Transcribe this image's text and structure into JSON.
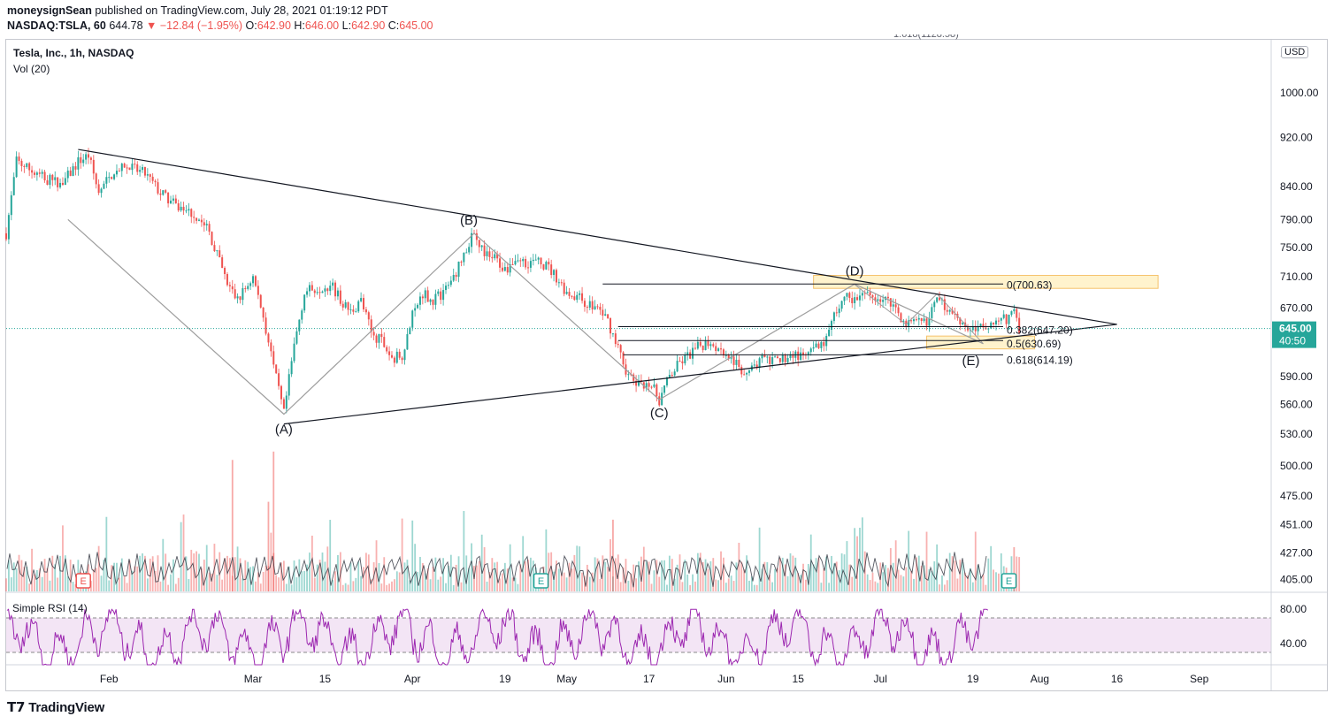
{
  "header": {
    "publisher_user": "moneysignSean",
    "published_text": "published on TradingView.com, July 28, 2021 01:19:12 PDT",
    "symbol": "NASDAQ:TSLA, 60",
    "last": "644.78",
    "change": "▼ −12.84 (−1.95%)",
    "o_label": "O:",
    "o_val": "642.90",
    "h_label": "H:",
    "h_val": "646.00",
    "l_label": "L:",
    "l_val": "642.90",
    "c_label": "C:",
    "c_val": "645.00"
  },
  "legend": {
    "title": "Tesla, Inc., 1h, NASDAQ",
    "volume": "Vol (20)",
    "rsi": "Simple RSI (14)"
  },
  "price_axis": {
    "currency": "USD",
    "top_tick": "10",
    "ticks": [
      "1000.00",
      "920.00",
      "840.00",
      "790.00",
      "750.00",
      "710.00",
      "670.00",
      "630.00",
      "590.00",
      "560.00",
      "530.00",
      "500.00",
      "475.00",
      "451.00",
      "427.00",
      "405.00"
    ],
    "current_price": "645.00",
    "countdown": "40:50",
    "rsi_ticks": [
      "80.00",
      "40.00"
    ]
  },
  "time_axis": [
    "Feb",
    "Mar",
    "15",
    "Apr",
    "19",
    "May",
    "17",
    "Jun",
    "15",
    "Jul",
    "19",
    "Aug",
    "16",
    "Sep"
  ],
  "earnings_marker": "E",
  "top_clipped_label": "1.618(1128.58)",
  "wave_labels": [
    "(A)",
    "(B)",
    "(C)",
    "(D)",
    "(E)"
  ],
  "fib_labels": [
    "0(700.63)",
    "0.382(647.20)",
    "0.5(630.69)",
    "0.618(614.19)"
  ],
  "colors": {
    "up": "#26a69a",
    "down": "#ef5350",
    "rsi": "#9c27b0",
    "rsi_band": "#f3e5f5",
    "zone_fill": "#fff3cd",
    "zone_border": "#f5c26b",
    "price_tag": "#26a69a",
    "current_line": "#26a69a"
  },
  "brand": "TradingView",
  "chart_data": {
    "type": "candlestick",
    "title": "Tesla, Inc., 1h, NASDAQ",
    "x_range": [
      "2021-01-12",
      "2021-09-15"
    ],
    "y_scale": "log",
    "ylim": [
      520,
      1080
    ],
    "path": [
      [
        "2021-01-12",
        770
      ],
      [
        "2021-01-14",
        880
      ],
      [
        "2021-01-17",
        865
      ],
      [
        "2021-01-20",
        850
      ],
      [
        "2021-01-23",
        845
      ],
      [
        "2021-01-26",
        880
      ],
      [
        "2021-01-28",
        890
      ],
      [
        "2021-01-30",
        830
      ],
      [
        "2021-02-02",
        865
      ],
      [
        "2021-02-05",
        870
      ],
      [
        "2021-02-08",
        860
      ],
      [
        "2021-02-11",
        830
      ],
      [
        "2021-02-14",
        810
      ],
      [
        "2021-02-17",
        800
      ],
      [
        "2021-02-20",
        780
      ],
      [
        "2021-02-22",
        740
      ],
      [
        "2021-02-24",
        700
      ],
      [
        "2021-02-26",
        680
      ],
      [
        "2021-03-01",
        710
      ],
      [
        "2021-03-03",
        660
      ],
      [
        "2021-03-05",
        600
      ],
      [
        "2021-03-07",
        550
      ],
      [
        "2021-03-09",
        625
      ],
      [
        "2021-03-11",
        690
      ],
      [
        "2021-03-13",
        695
      ],
      [
        "2021-03-16",
        700
      ],
      [
        "2021-03-18",
        680
      ],
      [
        "2021-03-20",
        665
      ],
      [
        "2021-03-22",
        680
      ],
      [
        "2021-03-24",
        640
      ],
      [
        "2021-03-26",
        630
      ],
      [
        "2021-03-28",
        610
      ],
      [
        "2021-03-30",
        615
      ],
      [
        "2021-04-01",
        660
      ],
      [
        "2021-04-03",
        690
      ],
      [
        "2021-04-05",
        680
      ],
      [
        "2021-04-07",
        690
      ],
      [
        "2021-04-09",
        710
      ],
      [
        "2021-04-11",
        740
      ],
      [
        "2021-04-13",
        770
      ],
      [
        "2021-04-15",
        740
      ],
      [
        "2021-04-17",
        735
      ],
      [
        "2021-04-19",
        720
      ],
      [
        "2021-04-21",
        735
      ],
      [
        "2021-04-23",
        730
      ],
      [
        "2021-04-25",
        730
      ],
      [
        "2021-04-27",
        725
      ],
      [
        "2021-04-29",
        710
      ],
      [
        "2021-05-01",
        690
      ],
      [
        "2021-05-03",
        685
      ],
      [
        "2021-05-05",
        675
      ],
      [
        "2021-05-07",
        670
      ],
      [
        "2021-05-09",
        655
      ],
      [
        "2021-05-11",
        620
      ],
      [
        "2021-05-13",
        590
      ],
      [
        "2021-05-15",
        580
      ],
      [
        "2021-05-17",
        585
      ],
      [
        "2021-05-19",
        565
      ],
      [
        "2021-05-21",
        590
      ],
      [
        "2021-05-23",
        605
      ],
      [
        "2021-05-25",
        615
      ],
      [
        "2021-05-27",
        625
      ],
      [
        "2021-05-29",
        630
      ],
      [
        "2021-05-31",
        620
      ],
      [
        "2021-06-02",
        610
      ],
      [
        "2021-06-04",
        595
      ],
      [
        "2021-06-06",
        600
      ],
      [
        "2021-06-08",
        610
      ],
      [
        "2021-06-10",
        605
      ],
      [
        "2021-06-12",
        610
      ],
      [
        "2021-06-14",
        615
      ],
      [
        "2021-06-16",
        610
      ],
      [
        "2021-06-18",
        620
      ],
      [
        "2021-06-20",
        625
      ],
      [
        "2021-06-22",
        660
      ],
      [
        "2021-06-24",
        685
      ],
      [
        "2021-06-26",
        680
      ],
      [
        "2021-06-28",
        685
      ],
      [
        "2021-06-30",
        685
      ],
      [
        "2021-07-02",
        680
      ],
      [
        "2021-07-04",
        670
      ],
      [
        "2021-07-06",
        650
      ],
      [
        "2021-07-08",
        650
      ],
      [
        "2021-07-10",
        655
      ],
      [
        "2021-07-12",
        680
      ],
      [
        "2021-07-14",
        670
      ],
      [
        "2021-07-16",
        660
      ],
      [
        "2021-07-18",
        645
      ],
      [
        "2021-07-20",
        645
      ],
      [
        "2021-07-22",
        650
      ],
      [
        "2021-07-24",
        660
      ],
      [
        "2021-07-26",
        655
      ],
      [
        "2021-07-27",
        675
      ],
      [
        "2021-07-28",
        645
      ]
    ],
    "waves": [
      {
        "label": "(A)",
        "date": "2021-03-07",
        "price": 550
      },
      {
        "label": "(B)",
        "date": "2021-04-13",
        "price": 770
      },
      {
        "label": "(C)",
        "date": "2021-05-19",
        "price": 565
      },
      {
        "label": "(D)",
        "date": "2021-06-26",
        "price": 700.63
      },
      {
        "label": "(E)",
        "date": "2021-07-21",
        "price": 627
      }
    ],
    "fib_levels": [
      {
        "ratio": 0,
        "price": 700.63
      },
      {
        "ratio": 0.382,
        "price": 647.2
      },
      {
        "ratio": 0.5,
        "price": 630.69
      },
      {
        "ratio": 0.618,
        "price": 614.19
      }
    ],
    "trendlines": [
      {
        "from": [
          "2021-01-26",
          900
        ],
        "to": [
          "2021-08-16",
          650
        ]
      },
      {
        "from": [
          "2021-03-07",
          540
        ],
        "to": [
          "2021-08-16",
          650
        ]
      }
    ],
    "zones": [
      {
        "from_date": "2021-06-18",
        "to_date": "2021-08-24",
        "low": 695,
        "high": 712
      },
      {
        "from_date": "2021-07-10",
        "to_date": "2021-07-31",
        "low": 621,
        "high": 636
      }
    ],
    "earnings_dates": [
      "2021-01-27",
      "2021-04-26",
      "2021-07-26"
    ],
    "volume_profile": "spikes near 2021-02-25 and 2021-03-05; baseline ~420, max ~510",
    "rsi_period": 14,
    "rsi_levels": [
      70,
      30
    ]
  }
}
